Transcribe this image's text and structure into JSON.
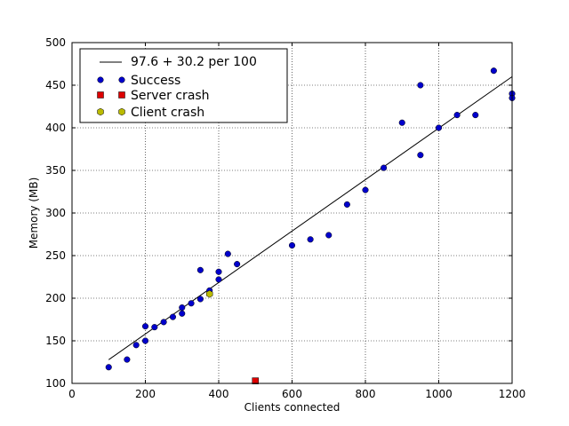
{
  "chart_data": {
    "type": "scatter",
    "xlabel": "Clients connected",
    "ylabel": "Memory (MB)",
    "xlim": [
      0,
      1200
    ],
    "ylim": [
      100,
      500
    ],
    "xticks": [
      0,
      200,
      400,
      600,
      800,
      1000,
      1200
    ],
    "yticks": [
      100,
      150,
      200,
      250,
      300,
      350,
      400,
      450,
      500
    ],
    "grid": true,
    "legend_position": "top-left",
    "fit_line": {
      "label": "97.6 + 30.2 per 100",
      "intercept": 97.6,
      "slope_per_100": 30.2,
      "x_range": [
        100,
        1200
      ],
      "color": "#000000"
    },
    "series": [
      {
        "name": "Success",
        "marker": "circle",
        "color": "#0000cc",
        "points": [
          [
            100,
            119
          ],
          [
            150,
            128
          ],
          [
            175,
            145
          ],
          [
            200,
            150
          ],
          [
            200,
            167
          ],
          [
            225,
            166
          ],
          [
            250,
            172
          ],
          [
            275,
            178
          ],
          [
            300,
            182
          ],
          [
            300,
            189
          ],
          [
            325,
            194
          ],
          [
            350,
            199
          ],
          [
            350,
            233
          ],
          [
            375,
            209
          ],
          [
            400,
            222
          ],
          [
            400,
            231
          ],
          [
            425,
            252
          ],
          [
            450,
            240
          ],
          [
            600,
            262
          ],
          [
            650,
            269
          ],
          [
            700,
            274
          ],
          [
            750,
            310
          ],
          [
            800,
            327
          ],
          [
            850,
            353
          ],
          [
            900,
            406
          ],
          [
            950,
            368
          ],
          [
            950,
            450
          ],
          [
            1000,
            400
          ],
          [
            1050,
            415
          ],
          [
            1100,
            415
          ],
          [
            1150,
            467
          ],
          [
            1200,
            440
          ],
          [
            1200,
            435
          ]
        ]
      },
      {
        "name": "Server crash",
        "marker": "square",
        "color": "#dd0000",
        "points": [
          [
            500,
            103
          ]
        ]
      },
      {
        "name": "Client crash",
        "marker": "hexagon",
        "color": "#bbbb00",
        "points": [
          [
            375,
            205
          ]
        ]
      }
    ]
  }
}
